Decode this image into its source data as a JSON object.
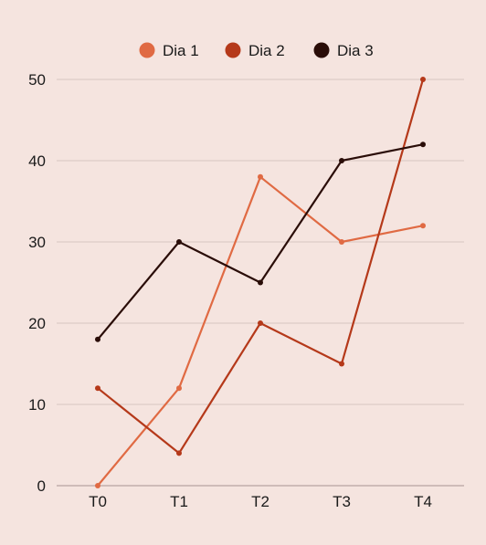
{
  "colors": {
    "background": "#f5e4df",
    "grid": "#d8c6c1",
    "axis": "#a89590",
    "text": "#1a1a1a"
  },
  "chart_data": {
    "type": "line",
    "title": "",
    "xlabel": "",
    "ylabel": "",
    "categories": [
      "T0",
      "T1",
      "T2",
      "T3",
      "T4"
    ],
    "ylim": [
      0,
      50
    ],
    "yticks": [
      0,
      10,
      20,
      30,
      40,
      50
    ],
    "grid": true,
    "legend_position": "top-center",
    "series": [
      {
        "name": "Dia 1",
        "color": "#e06a43",
        "values": [
          0,
          12,
          38,
          30,
          32
        ]
      },
      {
        "name": "Dia 2",
        "color": "#b5391a",
        "values": [
          12,
          4,
          20,
          15,
          50
        ]
      },
      {
        "name": "Dia 3",
        "color": "#2a0d08",
        "values": [
          18,
          30,
          25,
          40,
          42
        ]
      }
    ]
  }
}
